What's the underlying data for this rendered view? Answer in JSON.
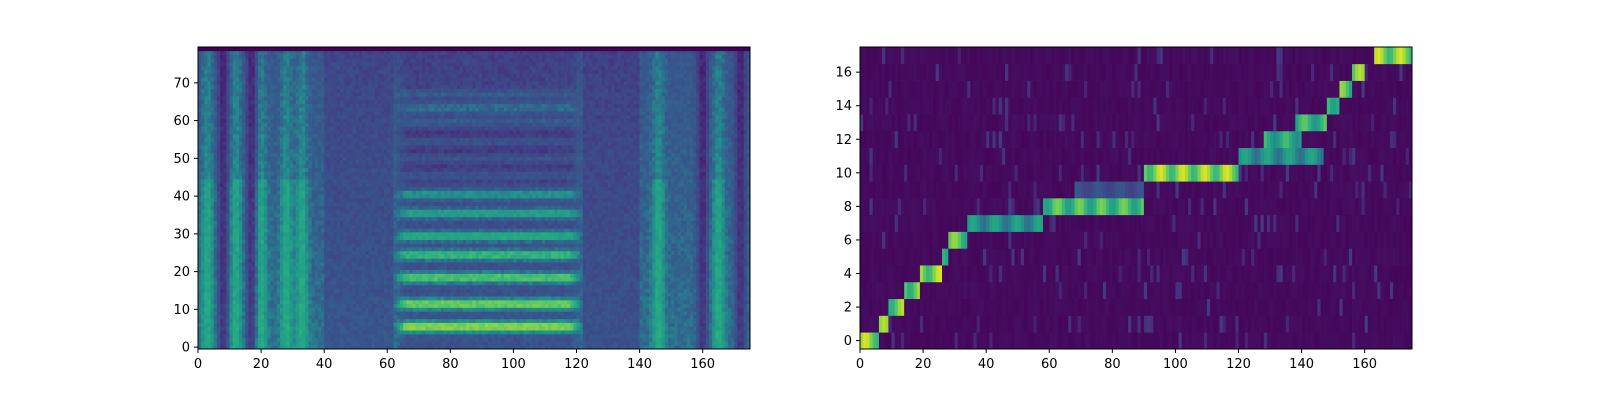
{
  "colors": {
    "background": "#ffffff",
    "low": "#440154",
    "mid_low": "#3b528b",
    "mid": "#21918c",
    "mid_high": "#5ec962",
    "high": "#fde725",
    "axis": "#000000"
  },
  "chart_data": [
    {
      "type": "heatmap",
      "title": "",
      "xlabel": "",
      "ylabel": "",
      "colormap": "viridis",
      "xlim": [
        0,
        175
      ],
      "ylim": [
        -0.5,
        79.5
      ],
      "xticks": [
        0,
        20,
        40,
        60,
        80,
        100,
        120,
        140,
        160
      ],
      "yticks": [
        0,
        10,
        20,
        30,
        40,
        50,
        60,
        70
      ],
      "x_ticklabels": [
        "0",
        "20",
        "40",
        "60",
        "80",
        "100",
        "120",
        "140",
        "160"
      ],
      "y_ticklabels": [
        "0",
        "10",
        "20",
        "30",
        "40",
        "50",
        "60",
        "70"
      ],
      "n_frames": 175,
      "n_bins": 80,
      "content": "mel spectrogram",
      "features": {
        "harmonic_band_x": [
          62,
          122
        ],
        "harmonic_rows": [
          6,
          12,
          19,
          25,
          30,
          36,
          41
        ],
        "bright_columns": [
          3,
          12,
          20,
          28,
          33,
          146,
          165
        ],
        "dark_columns": [
          8,
          17,
          160,
          172
        ]
      }
    },
    {
      "type": "heatmap",
      "title": "",
      "xlabel": "",
      "ylabel": "",
      "colormap": "viridis",
      "xlim": [
        0,
        175
      ],
      "ylim": [
        -0.5,
        17.5
      ],
      "xticks": [
        0,
        20,
        40,
        60,
        80,
        100,
        120,
        140,
        160
      ],
      "yticks": [
        0,
        2,
        4,
        6,
        8,
        10,
        12,
        14,
        16
      ],
      "x_ticklabels": [
        "0",
        "20",
        "40",
        "60",
        "80",
        "100",
        "120",
        "140",
        "160"
      ],
      "y_ticklabels": [
        "0",
        "2",
        "4",
        "6",
        "8",
        "10",
        "12",
        "14",
        "16"
      ],
      "n_frames": 175,
      "n_tokens": 18,
      "content": "attention alignment",
      "alignment_segments": [
        {
          "row": 0,
          "x": [
            0,
            6
          ],
          "v": 0.95
        },
        {
          "row": 1,
          "x": [
            6,
            9
          ],
          "v": 0.9
        },
        {
          "row": 2,
          "x": [
            9,
            14
          ],
          "v": 0.9
        },
        {
          "row": 3,
          "x": [
            14,
            19
          ],
          "v": 0.9
        },
        {
          "row": 4,
          "x": [
            19,
            26
          ],
          "v": 0.95
        },
        {
          "row": 5,
          "x": [
            26,
            28
          ],
          "v": 0.85
        },
        {
          "row": 6,
          "x": [
            28,
            34
          ],
          "v": 0.85
        },
        {
          "row": 7,
          "x": [
            34,
            58
          ],
          "v": 0.6
        },
        {
          "row": 8,
          "x": [
            58,
            90
          ],
          "v": 0.8
        },
        {
          "row": 9,
          "x": [
            68,
            90
          ],
          "v": 0.35
        },
        {
          "row": 10,
          "x": [
            90,
            120
          ],
          "v": 0.95
        },
        {
          "row": 11,
          "x": [
            120,
            147
          ],
          "v": 0.6
        },
        {
          "row": 12,
          "x": [
            128,
            140
          ],
          "v": 0.7
        },
        {
          "row": 13,
          "x": [
            138,
            148
          ],
          "v": 0.75
        },
        {
          "row": 14,
          "x": [
            148,
            152
          ],
          "v": 0.8
        },
        {
          "row": 15,
          "x": [
            152,
            156
          ],
          "v": 0.85
        },
        {
          "row": 16,
          "x": [
            156,
            160
          ],
          "v": 0.9
        },
        {
          "row": 17,
          "x": [
            163,
            175
          ],
          "v": 0.95
        }
      ]
    }
  ]
}
